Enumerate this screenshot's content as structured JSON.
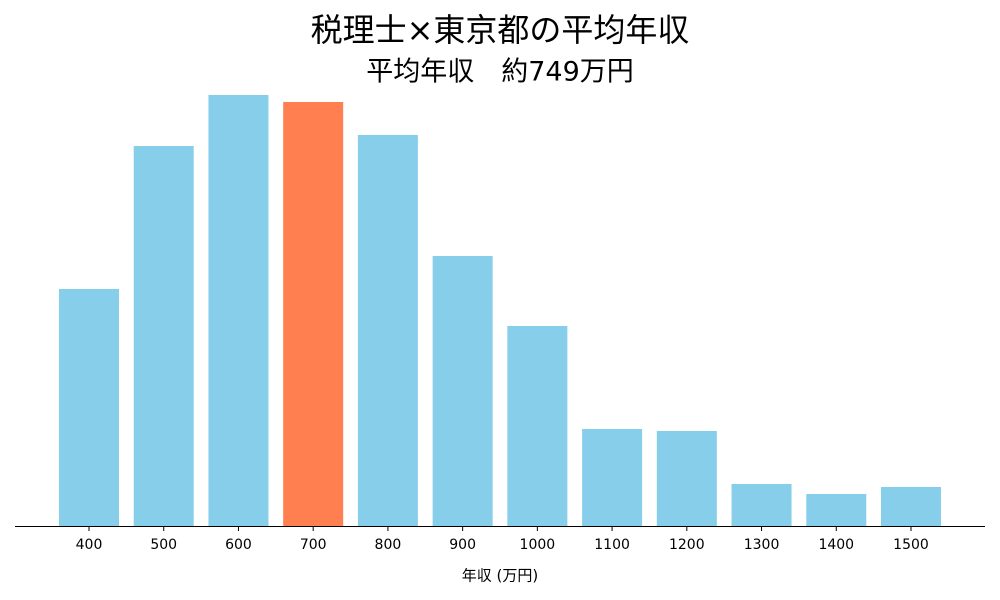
{
  "chart_data": {
    "type": "bar",
    "title": "税理士×東京都の平均年収",
    "subtitle": "平均年収　約749万円",
    "x_label": "年収 (万円)",
    "categories": [
      "400",
      "500",
      "600",
      "700",
      "800",
      "900",
      "1000",
      "1100",
      "1200",
      "1300",
      "1400",
      "1500"
    ],
    "values": [
      237,
      380,
      431,
      424,
      391,
      270,
      200,
      97,
      95,
      42,
      32,
      39
    ],
    "colors": [
      "#87ceeb",
      "#87ceeb",
      "#87ceeb",
      "#ff7f50",
      "#87ceeb",
      "#87ceeb",
      "#87ceeb",
      "#87ceeb",
      "#87ceeb",
      "#87ceeb",
      "#87ceeb",
      "#87ceeb"
    ],
    "ylim": [
      0,
      452.5
    ]
  }
}
